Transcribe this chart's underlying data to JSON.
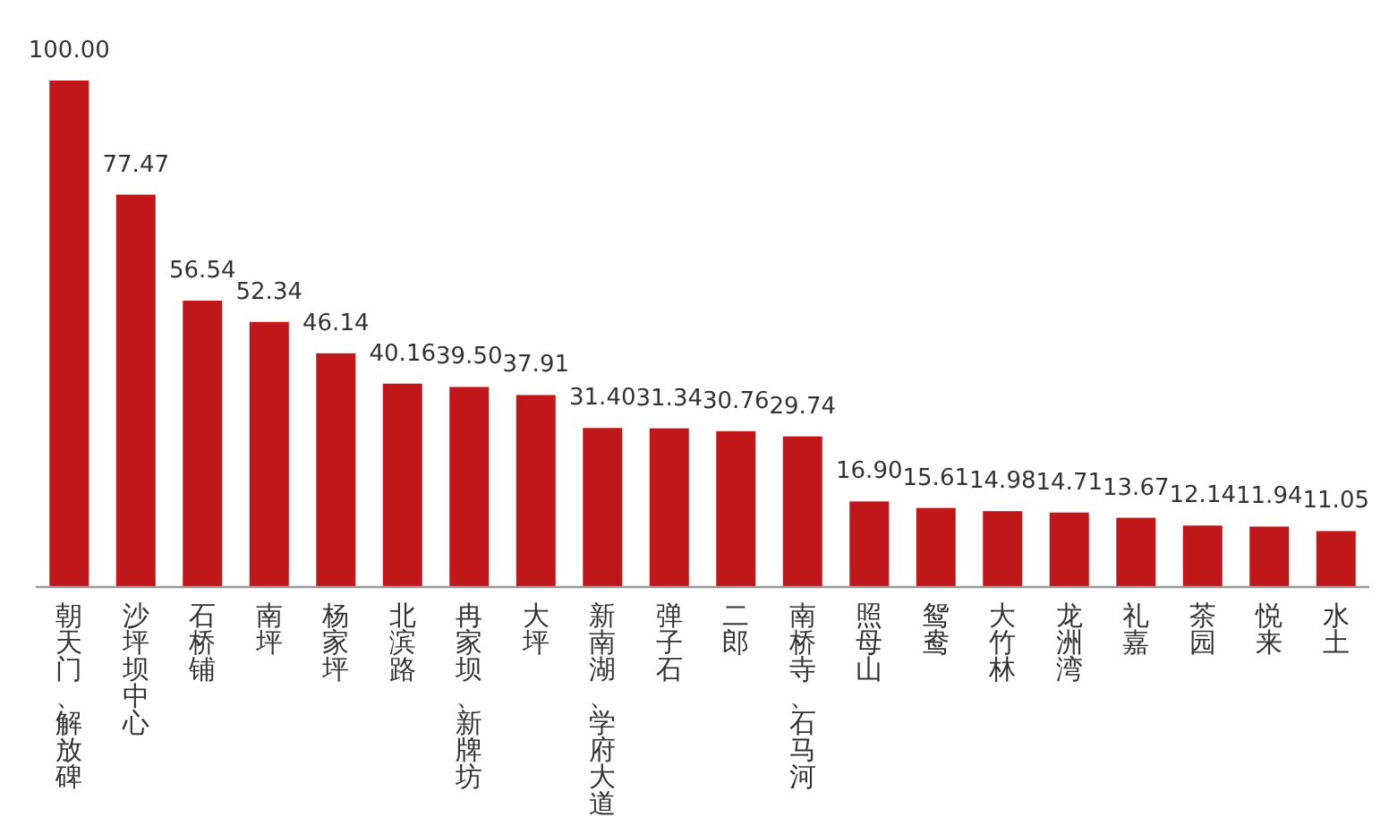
{
  "chart_data": {
    "type": "bar",
    "color": "#c0171a",
    "categories": [
      "朝天门、解放碑",
      "沙坪坝中心",
      "石桥铺",
      "南坪",
      "杨家坪",
      "北滨路",
      "冉家坝、新牌坊",
      "大坪",
      "新南湖、学府大道",
      "弹子石",
      "二郎",
      "南桥寺、石马河",
      "照母山",
      "鸳鸯",
      "大竹林",
      "龙洲湾",
      "礼嘉",
      "茶园",
      "悦来",
      "水土"
    ],
    "values": [
      100.0,
      77.47,
      56.54,
      52.34,
      46.14,
      40.16,
      39.5,
      37.91,
      31.4,
      31.34,
      30.76,
      29.74,
      16.9,
      15.61,
      14.98,
      14.71,
      13.67,
      12.14,
      11.94,
      11.05
    ],
    "value_labels": [
      "100.00",
      "77.47",
      "56.54",
      "52.34",
      "46.14",
      "40.16",
      "39.50",
      "37.91",
      "31.40",
      "31.34",
      "30.76",
      "29.74",
      "16.90",
      "15.61",
      "14.98",
      "14.71",
      "13.67",
      "12.14",
      "11.94",
      "11.05"
    ]
  }
}
